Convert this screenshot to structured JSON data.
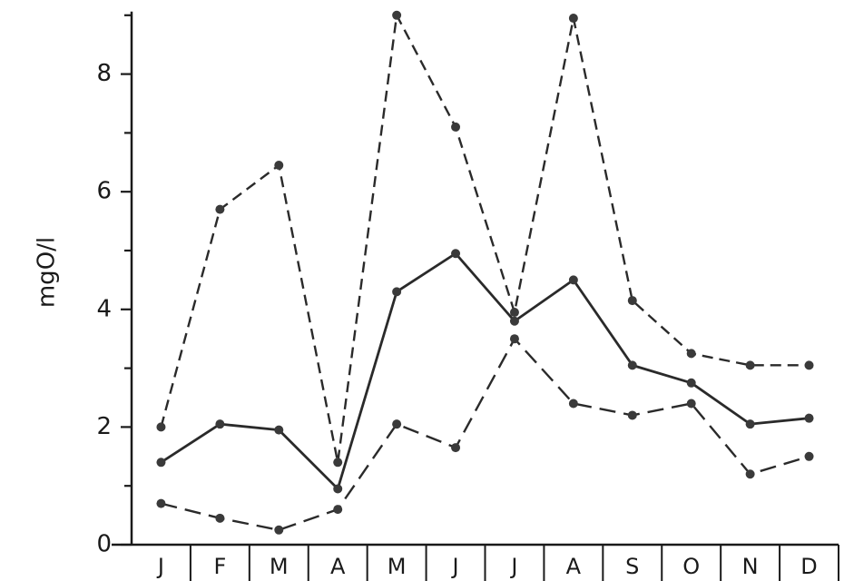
{
  "chart_data": {
    "type": "line",
    "title": "",
    "xlabel": "",
    "ylabel": "mgO/l",
    "ylim": [
      0,
      9
    ],
    "yticks": [
      0,
      2,
      4,
      6,
      8
    ],
    "grid": false,
    "categories": [
      "J",
      "F",
      "M",
      "A",
      "M",
      "J",
      "J",
      "A",
      "S",
      "O",
      "N",
      "D"
    ],
    "series": [
      {
        "style": "dashed-fine",
        "color": "#2a2a2a",
        "values": [
          2.0,
          5.7,
          6.45,
          1.4,
          9.0,
          7.1,
          3.95,
          8.95,
          4.15,
          3.25,
          3.05,
          3.05
        ]
      },
      {
        "style": "solid",
        "color": "#2a2a2a",
        "values": [
          1.4,
          2.05,
          1.95,
          0.95,
          4.3,
          4.95,
          3.8,
          4.5,
          3.05,
          2.75,
          2.05,
          2.15
        ]
      },
      {
        "style": "dashed-long",
        "color": "#2a2a2a",
        "values": [
          0.7,
          0.45,
          0.25,
          0.6,
          2.05,
          1.65,
          3.5,
          2.4,
          2.2,
          2.4,
          1.2,
          1.5
        ]
      }
    ]
  }
}
